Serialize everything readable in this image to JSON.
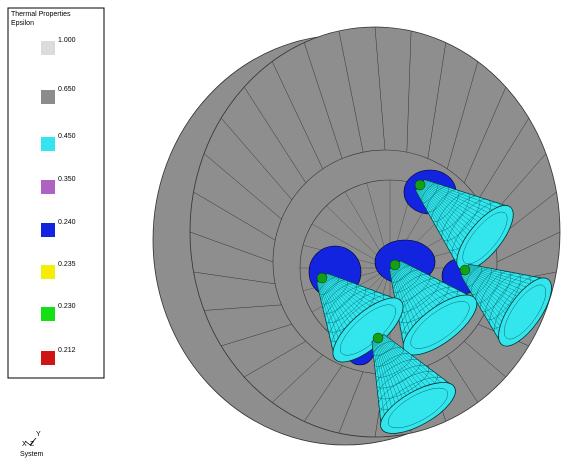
{
  "legend": {
    "title": "Thermal Properties",
    "subtitle": "Epsilon",
    "entries": [
      {
        "label": "1.000",
        "color": "#dcdcdc"
      },
      {
        "label": "0.650",
        "color": "#8c8c8c"
      },
      {
        "label": "0.450",
        "color": "#33e6ee"
      },
      {
        "label": "0.350",
        "color": "#b062c4"
      },
      {
        "label": "0.240",
        "color": "#1224e0"
      },
      {
        "label": "0.235",
        "color": "#f6ee00"
      },
      {
        "label": "0.230",
        "color": "#14e014"
      },
      {
        "label": "0.212",
        "color": "#d01414"
      }
    ]
  },
  "triad": {
    "y": "Y",
    "x": "X",
    "z": "Z",
    "caption": "System"
  }
}
